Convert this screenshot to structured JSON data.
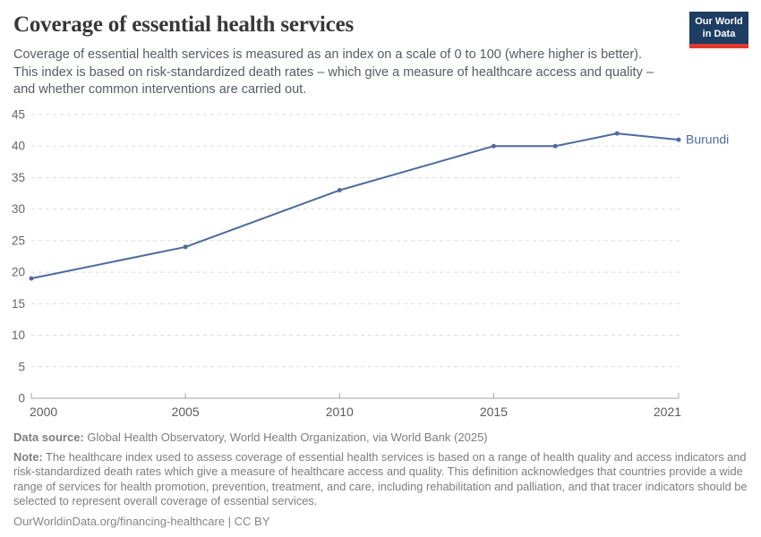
{
  "header": {
    "title": "Coverage of essential health services",
    "subtitle_lines": [
      "Coverage of essential health services is measured as an index on a scale of 0 to 100 (where higher is better).",
      "This index is based on risk-standardized death rates – which give a measure of healthcare access and quality –",
      "and whether common interventions are carried out."
    ]
  },
  "logo": {
    "line1": "Our World",
    "line2": "in Data",
    "bg_color": "#1d3d63",
    "bar_color": "#e0392e"
  },
  "chart_data": {
    "type": "line",
    "title": "Coverage of essential health services",
    "series": [
      {
        "name": "Burundi",
        "x": [
          2000,
          2005,
          2010,
          2015,
          2017,
          2019,
          2021
        ],
        "values": [
          19,
          24,
          33,
          40,
          40,
          42,
          41
        ],
        "color": "#4c6a9c"
      }
    ],
    "end_label": "Burundi",
    "x_ticks": [
      2000,
      2005,
      2010,
      2015,
      2021
    ],
    "y_ticks": [
      0,
      5,
      10,
      15,
      20,
      25,
      30,
      35,
      40,
      45
    ],
    "xlim": [
      2000,
      2021
    ],
    "ylim": [
      0,
      45
    ],
    "grid": "horizontal-dashed",
    "legend_position": "end-of-line"
  },
  "footer": {
    "data_source_label": "Data source:",
    "data_source_text": " Global Health Observatory, World Health Organization, via World Bank (2025)",
    "note_label": "Note:",
    "note_text": " The healthcare index used to assess coverage of essential health services is based on a range of health quality and access indicators and risk-standardized death rates which give a measure of healthcare access and quality. This definition acknowledges that countries provide a wide range of services for health promotion, prevention, treatment, and care, including rehabilitation and palliation, and that tracer indicators should be selected to represent overall coverage of essential services.",
    "link_text": "OurWorldinData.org/financing-healthcare | CC BY"
  }
}
